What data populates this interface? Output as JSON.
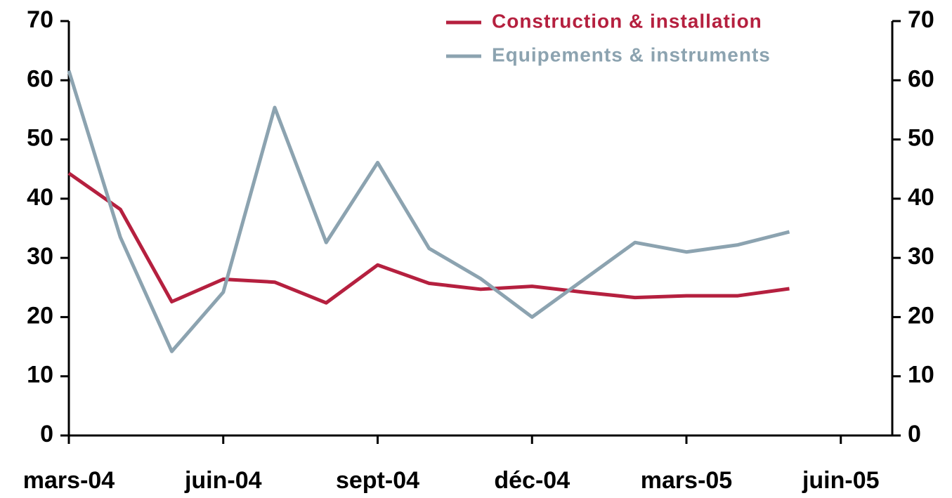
{
  "chart_data": {
    "type": "line",
    "categories": [
      "mars-04",
      null,
      null,
      "juin-04",
      null,
      null,
      "sept-04",
      null,
      null,
      "déc-04",
      null,
      null,
      "mars-05",
      null,
      null,
      "juin-05"
    ],
    "series": [
      {
        "name": "Construction & installation",
        "color": "#b5203f",
        "values": [
          44.3,
          38.2,
          22.6,
          26.4,
          25.9,
          22.4,
          28.8,
          25.7,
          24.7,
          25.2,
          24.2,
          23.3,
          23.6,
          23.6,
          24.8,
          null
        ]
      },
      {
        "name": "Equipements & instruments",
        "color": "#8ca3b0",
        "values": [
          61.6,
          33.5,
          14.2,
          24.2,
          55.4,
          32.6,
          46.1,
          31.6,
          26.5,
          20.0,
          26.3,
          32.6,
          31.0,
          32.2,
          34.4,
          null
        ]
      }
    ],
    "ylim": [
      0,
      70
    ],
    "yticks": [
      0,
      10,
      20,
      30,
      40,
      50,
      60,
      70
    ],
    "y2lim": [
      0,
      70
    ],
    "y2ticks": [
      0,
      10,
      20,
      30,
      40,
      50,
      60,
      70
    ],
    "legend": "top"
  }
}
